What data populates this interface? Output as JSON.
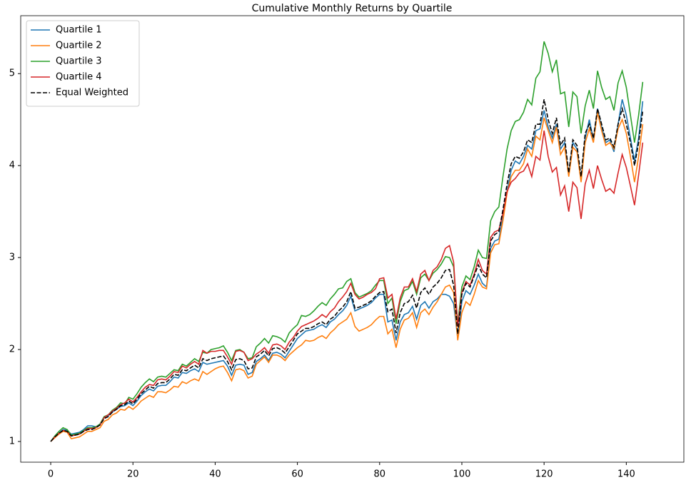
{
  "chart_data": {
    "type": "line",
    "title": "Cumulative Monthly Returns by Quartile",
    "x": [
      0,
      1,
      2,
      3,
      4,
      5,
      6,
      7,
      8,
      9,
      10,
      11,
      12,
      13,
      14,
      15,
      16,
      17,
      18,
      19,
      20,
      21,
      22,
      23,
      24,
      25,
      26,
      27,
      28,
      29,
      30,
      31,
      32,
      33,
      34,
      35,
      36,
      37,
      38,
      39,
      40,
      41,
      42,
      43,
      44,
      45,
      46,
      47,
      48,
      49,
      50,
      51,
      52,
      53,
      54,
      55,
      56,
      57,
      58,
      59,
      60,
      61,
      62,
      63,
      64,
      65,
      66,
      67,
      68,
      69,
      70,
      71,
      72,
      73,
      74,
      75,
      76,
      77,
      78,
      79,
      80,
      81,
      82,
      83,
      84,
      85,
      86,
      87,
      88,
      89,
      90,
      91,
      92,
      93,
      94,
      95,
      96,
      97,
      98,
      99,
      100,
      101,
      102,
      103,
      104,
      105,
      106,
      107,
      108,
      109,
      110,
      111,
      112,
      113,
      114,
      115,
      116,
      117,
      118,
      119,
      120,
      121,
      122,
      123,
      124,
      125,
      126,
      127,
      128,
      129,
      130,
      131,
      132,
      133,
      134,
      135,
      136,
      137,
      138,
      139,
      140,
      141,
      142,
      143,
      144
    ],
    "series": [
      {
        "name": "Quartile 1",
        "color": "#1f77b4",
        "linestyle": "solid",
        "values": [
          1.0,
          1.05,
          1.09,
          1.13,
          1.12,
          1.08,
          1.09,
          1.1,
          1.13,
          1.17,
          1.17,
          1.16,
          1.19,
          1.27,
          1.28,
          1.32,
          1.35,
          1.38,
          1.39,
          1.42,
          1.39,
          1.44,
          1.5,
          1.54,
          1.57,
          1.55,
          1.6,
          1.61,
          1.61,
          1.65,
          1.7,
          1.69,
          1.75,
          1.74,
          1.77,
          1.79,
          1.76,
          1.86,
          1.84,
          1.85,
          1.86,
          1.87,
          1.88,
          1.82,
          1.72,
          1.83,
          1.84,
          1.83,
          1.73,
          1.75,
          1.87,
          1.9,
          1.94,
          1.88,
          1.96,
          1.97,
          1.95,
          1.91,
          1.98,
          2.05,
          2.12,
          2.16,
          2.2,
          2.21,
          2.22,
          2.25,
          2.27,
          2.24,
          2.3,
          2.33,
          2.38,
          2.42,
          2.48,
          2.58,
          2.42,
          2.44,
          2.46,
          2.48,
          2.51,
          2.56,
          2.6,
          2.6,
          2.3,
          2.32,
          2.1,
          2.3,
          2.38,
          2.4,
          2.47,
          2.33,
          2.48,
          2.52,
          2.45,
          2.52,
          2.55,
          2.6,
          2.6,
          2.58,
          2.5,
          2.12,
          2.52,
          2.64,
          2.6,
          2.7,
          2.82,
          2.72,
          2.68,
          3.1,
          3.18,
          3.2,
          3.45,
          3.72,
          3.95,
          4.05,
          4.02,
          4.1,
          4.22,
          4.18,
          4.38,
          4.4,
          4.6,
          4.42,
          4.3,
          4.45,
          4.18,
          4.25,
          3.9,
          4.25,
          4.18,
          3.85,
          4.3,
          4.5,
          4.28,
          4.62,
          4.42,
          4.25,
          4.28,
          4.15,
          4.45,
          4.72,
          4.55,
          4.3,
          4.05,
          4.3,
          4.7
        ]
      },
      {
        "name": "Quartile 2",
        "color": "#ff7f0e",
        "linestyle": "solid",
        "values": [
          1.0,
          1.04,
          1.08,
          1.11,
          1.1,
          1.03,
          1.04,
          1.05,
          1.08,
          1.11,
          1.11,
          1.13,
          1.15,
          1.22,
          1.24,
          1.29,
          1.31,
          1.35,
          1.34,
          1.38,
          1.35,
          1.39,
          1.44,
          1.47,
          1.5,
          1.48,
          1.54,
          1.54,
          1.53,
          1.56,
          1.6,
          1.59,
          1.65,
          1.63,
          1.66,
          1.68,
          1.66,
          1.76,
          1.73,
          1.76,
          1.79,
          1.81,
          1.82,
          1.75,
          1.66,
          1.78,
          1.79,
          1.77,
          1.69,
          1.71,
          1.84,
          1.88,
          1.92,
          1.86,
          1.94,
          1.94,
          1.92,
          1.88,
          1.94,
          1.98,
          2.02,
          2.05,
          2.1,
          2.09,
          2.1,
          2.13,
          2.15,
          2.12,
          2.18,
          2.22,
          2.27,
          2.3,
          2.33,
          2.4,
          2.25,
          2.2,
          2.22,
          2.24,
          2.27,
          2.32,
          2.36,
          2.36,
          2.17,
          2.22,
          2.02,
          2.22,
          2.32,
          2.34,
          2.4,
          2.24,
          2.4,
          2.44,
          2.38,
          2.46,
          2.52,
          2.6,
          2.68,
          2.7,
          2.62,
          2.1,
          2.4,
          2.52,
          2.48,
          2.6,
          2.75,
          2.68,
          2.66,
          3.05,
          3.14,
          3.15,
          3.4,
          3.7,
          3.88,
          3.95,
          3.95,
          4.02,
          4.18,
          4.1,
          4.32,
          4.28,
          4.52,
          4.38,
          4.25,
          4.42,
          4.12,
          4.2,
          3.88,
          4.2,
          4.15,
          3.82,
          4.25,
          4.4,
          4.25,
          4.58,
          4.38,
          4.22,
          4.25,
          4.18,
          4.4,
          4.5,
          4.35,
          4.1,
          3.82,
          4.1,
          4.45
        ]
      },
      {
        "name": "Quartile 3",
        "color": "#2ca02c",
        "linestyle": "solid",
        "values": [
          1.0,
          1.06,
          1.11,
          1.15,
          1.13,
          1.07,
          1.08,
          1.09,
          1.12,
          1.15,
          1.15,
          1.16,
          1.19,
          1.27,
          1.29,
          1.34,
          1.37,
          1.42,
          1.41,
          1.48,
          1.46,
          1.52,
          1.59,
          1.64,
          1.68,
          1.65,
          1.7,
          1.71,
          1.7,
          1.74,
          1.78,
          1.77,
          1.84,
          1.82,
          1.86,
          1.9,
          1.87,
          1.97,
          1.96,
          2.0,
          2.01,
          2.02,
          2.04,
          1.97,
          1.88,
          1.99,
          2.0,
          1.97,
          1.9,
          1.91,
          2.03,
          2.07,
          2.12,
          2.07,
          2.15,
          2.14,
          2.12,
          2.08,
          2.18,
          2.23,
          2.27,
          2.37,
          2.36,
          2.38,
          2.42,
          2.47,
          2.51,
          2.48,
          2.55,
          2.6,
          2.66,
          2.67,
          2.74,
          2.77,
          2.62,
          2.57,
          2.59,
          2.61,
          2.64,
          2.7,
          2.75,
          2.75,
          2.5,
          2.56,
          2.28,
          2.52,
          2.64,
          2.66,
          2.74,
          2.6,
          2.78,
          2.82,
          2.75,
          2.83,
          2.87,
          2.93,
          3.01,
          3.0,
          2.9,
          2.28,
          2.68,
          2.8,
          2.76,
          2.9,
          3.08,
          3.0,
          2.99,
          3.4,
          3.5,
          3.55,
          3.88,
          4.18,
          4.38,
          4.48,
          4.5,
          4.58,
          4.72,
          4.66,
          4.95,
          5.02,
          5.35,
          5.22,
          5.02,
          5.15,
          4.78,
          4.8,
          4.42,
          4.8,
          4.75,
          4.35,
          4.65,
          4.82,
          4.62,
          5.03,
          4.85,
          4.72,
          4.75,
          4.6,
          4.9,
          5.03,
          4.85,
          4.55,
          4.25,
          4.55,
          4.91
        ]
      },
      {
        "name": "Quartile 4",
        "color": "#d62728",
        "linestyle": "solid",
        "values": [
          1.0,
          1.05,
          1.09,
          1.12,
          1.11,
          1.06,
          1.07,
          1.08,
          1.11,
          1.14,
          1.14,
          1.15,
          1.18,
          1.26,
          1.29,
          1.33,
          1.36,
          1.4,
          1.42,
          1.46,
          1.43,
          1.48,
          1.54,
          1.59,
          1.62,
          1.61,
          1.67,
          1.68,
          1.67,
          1.71,
          1.76,
          1.75,
          1.82,
          1.8,
          1.84,
          1.87,
          1.84,
          1.99,
          1.96,
          1.98,
          1.98,
          1.99,
          1.99,
          1.92,
          1.84,
          1.98,
          1.99,
          1.97,
          1.88,
          1.9,
          1.95,
          1.98,
          2.02,
          1.96,
          2.05,
          2.06,
          2.04,
          2.0,
          2.08,
          2.13,
          2.2,
          2.25,
          2.27,
          2.29,
          2.31,
          2.34,
          2.38,
          2.35,
          2.41,
          2.45,
          2.52,
          2.57,
          2.63,
          2.72,
          2.6,
          2.55,
          2.57,
          2.6,
          2.62,
          2.66,
          2.77,
          2.78,
          2.56,
          2.6,
          2.33,
          2.56,
          2.68,
          2.68,
          2.77,
          2.63,
          2.82,
          2.86,
          2.75,
          2.86,
          2.9,
          2.98,
          3.1,
          3.13,
          2.95,
          2.25,
          2.62,
          2.74,
          2.7,
          2.82,
          2.98,
          2.86,
          2.82,
          3.22,
          3.28,
          3.3,
          3.48,
          3.72,
          3.82,
          3.86,
          3.92,
          3.94,
          4.02,
          3.88,
          4.1,
          4.06,
          4.38,
          4.1,
          3.93,
          3.98,
          3.68,
          3.78,
          3.5,
          3.82,
          3.76,
          3.42,
          3.8,
          3.95,
          3.75,
          4.0,
          3.85,
          3.72,
          3.75,
          3.7,
          3.92,
          4.12,
          3.98,
          3.78,
          3.57,
          3.9,
          4.25
        ]
      },
      {
        "name": "Equal Weighted",
        "color": "#000000",
        "linestyle": "dashed",
        "values": [
          1.0,
          1.05,
          1.09,
          1.12,
          1.11,
          1.06,
          1.07,
          1.08,
          1.11,
          1.13,
          1.13,
          1.15,
          1.18,
          1.25,
          1.27,
          1.32,
          1.35,
          1.39,
          1.4,
          1.44,
          1.41,
          1.46,
          1.52,
          1.56,
          1.6,
          1.58,
          1.63,
          1.64,
          1.64,
          1.68,
          1.73,
          1.72,
          1.78,
          1.77,
          1.8,
          1.83,
          1.8,
          1.9,
          1.88,
          1.9,
          1.91,
          1.92,
          1.93,
          1.87,
          1.78,
          1.89,
          1.9,
          1.88,
          1.79,
          1.8,
          1.92,
          1.95,
          1.99,
          1.93,
          2.01,
          2.02,
          2.0,
          1.96,
          2.03,
          2.1,
          2.17,
          2.2,
          2.23,
          2.23,
          2.25,
          2.28,
          2.3,
          2.27,
          2.33,
          2.36,
          2.42,
          2.46,
          2.52,
          2.63,
          2.45,
          2.46,
          2.48,
          2.5,
          2.53,
          2.58,
          2.62,
          2.63,
          2.41,
          2.44,
          2.18,
          2.4,
          2.5,
          2.52,
          2.59,
          2.45,
          2.62,
          2.67,
          2.6,
          2.68,
          2.72,
          2.78,
          2.86,
          2.87,
          2.7,
          2.17,
          2.6,
          2.72,
          2.68,
          2.8,
          2.92,
          2.82,
          2.78,
          3.18,
          3.25,
          3.28,
          3.52,
          3.8,
          4.02,
          4.1,
          4.08,
          4.15,
          4.28,
          4.25,
          4.45,
          4.45,
          4.72,
          4.5,
          4.35,
          4.52,
          4.22,
          4.3,
          3.92,
          4.28,
          4.22,
          3.88,
          4.35,
          4.45,
          4.3,
          4.62,
          4.45,
          4.28,
          4.3,
          4.2,
          4.45,
          4.62,
          4.45,
          4.25,
          4.0,
          4.25,
          4.6
        ]
      }
    ],
    "xlim": [
      -7.3,
      154
    ],
    "xticks": [
      0,
      20,
      40,
      60,
      80,
      100,
      120,
      140
    ],
    "ylim": [
      0.775,
      5.63
    ],
    "yticks": [
      1,
      2,
      3,
      4,
      5
    ],
    "grid": false,
    "legend": "upper left"
  }
}
